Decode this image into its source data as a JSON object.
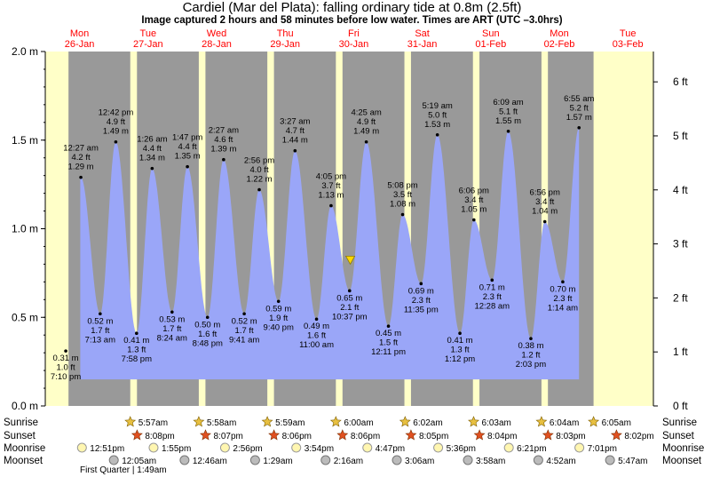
{
  "header": {
    "title": "Cardiel (Mar del Plata): falling  ordinary tide at 0.8m (2.5ft)",
    "subtitle": "Image captured 2 hours and 58 minutes before low water. Times are ART (UTC –3.0hrs)"
  },
  "days": [
    {
      "day": "Mon",
      "date": "26-Jan",
      "color": "#ff0000"
    },
    {
      "day": "Tue",
      "date": "27-Jan",
      "color": "#ff0000"
    },
    {
      "day": "Wed",
      "date": "28-Jan",
      "color": "#ff0000"
    },
    {
      "day": "Thu",
      "date": "29-Jan",
      "color": "#ff0000"
    },
    {
      "day": "Fri",
      "date": "30-Jan",
      "color": "#ff0000"
    },
    {
      "day": "Sat",
      "date": "31-Jan",
      "color": "#ff0000"
    },
    {
      "day": "Sun",
      "date": "01-Feb",
      "color": "#ff0000"
    },
    {
      "day": "Mon",
      "date": "02-Feb",
      "color": "#ff0000"
    },
    {
      "day": "Tue",
      "date": "03-Feb",
      "color": "#ff0000"
    }
  ],
  "chart_data": {
    "type": "area",
    "title": "Cardiel (Mar del Plata): falling  ordinary tide at 0.8m (2.5ft)",
    "x_units": "days since 26-Jan 00:00 (ART)",
    "ylim_m": [
      0,
      2.0
    ],
    "yticks_m": [
      "0.0 m",
      "0.5 m",
      "1.0 m",
      "1.5 m",
      "2.0 m"
    ],
    "yticks_ft": [
      "0 ft",
      "1 ft",
      "2 ft",
      "3 ft",
      "4 ft",
      "5 ft",
      "6 ft"
    ],
    "colors": {
      "day_fill": "#ffffc8",
      "night_fill": "#999999",
      "tide_fill": "#9aa6f8",
      "day_label": "#ff0000",
      "current_marker": "#ffd700"
    },
    "current": {
      "t": 4.45,
      "h": 0.8
    },
    "extremes": [
      {
        "t": 0.125,
        "h": 1.63,
        "type": "high",
        "label": []
      },
      {
        "t": 0.299,
        "h": 0.31,
        "type": "low",
        "label": [
          "0.31 m",
          "1.0 ft",
          "7:10 pm"
        ]
      },
      {
        "t": 0.519,
        "h": 1.29,
        "type": "high",
        "label": [
          "12:27 am",
          "4.2 ft",
          "1.29 m"
        ]
      },
      {
        "t": 0.801,
        "h": 0.52,
        "type": "low",
        "label": [
          "0.52 m",
          "1.7 ft",
          "7:13 am"
        ]
      },
      {
        "t": 1.029,
        "h": 1.49,
        "type": "high",
        "label": [
          "12:42 pm",
          "4.9 ft",
          "1.49 m"
        ]
      },
      {
        "t": 1.332,
        "h": 0.41,
        "type": "low",
        "label": [
          "0.41 m",
          "1.3 ft",
          "7:58 pm"
        ]
      },
      {
        "t": 1.559,
        "h": 1.34,
        "type": "high",
        "label": [
          "1:26 am",
          "4.4 ft",
          "1.34 m"
        ]
      },
      {
        "t": 1.85,
        "h": 0.53,
        "type": "low",
        "label": [
          "0.53 m",
          "1.7 ft",
          "8:24 am"
        ]
      },
      {
        "t": 2.074,
        "h": 1.35,
        "type": "high",
        "label": [
          "1:47 pm",
          "4.4 ft",
          "1.35 m"
        ]
      },
      {
        "t": 2.367,
        "h": 0.5,
        "type": "low",
        "label": [
          "0.50 m",
          "1.6 ft",
          "8:48 pm"
        ]
      },
      {
        "t": 2.602,
        "h": 1.39,
        "type": "high",
        "label": [
          "2:27 am",
          "4.6 ft",
          "1.39 m"
        ]
      },
      {
        "t": 2.903,
        "h": 0.52,
        "type": "low",
        "label": [
          "0.52 m",
          "1.7 ft",
          "9:41 am"
        ]
      },
      {
        "t": 3.122,
        "h": 1.22,
        "type": "high",
        "label": [
          "2:56 pm",
          "4.0 ft",
          "1.22 m"
        ]
      },
      {
        "t": 3.403,
        "h": 0.59,
        "type": "low",
        "label": [
          "0.59 m",
          "1.9 ft",
          "9:40 pm"
        ]
      },
      {
        "t": 3.644,
        "h": 1.44,
        "type": "high",
        "label": [
          "3:27 am",
          "4.7 ft",
          "1.44 m"
        ]
      },
      {
        "t": 3.958,
        "h": 0.49,
        "type": "low",
        "label": [
          "0.49 m",
          "1.6 ft",
          "11:00 am"
        ]
      },
      {
        "t": 4.17,
        "h": 1.13,
        "type": "high",
        "label": [
          "4:05 pm",
          "3.7 ft",
          "1.13 m"
        ]
      },
      {
        "t": 4.44,
        "h": 0.65,
        "type": "low",
        "label": [
          "0.65 m",
          "2.1 ft",
          "10:37 pm"
        ]
      },
      {
        "t": 4.684,
        "h": 1.49,
        "type": "high",
        "label": [
          "4:25 am",
          "4.9 ft",
          "1.49 m"
        ]
      },
      {
        "t": 5.007,
        "h": 0.45,
        "type": "low",
        "label": [
          "0.45 m",
          "1.5 ft",
          "12:11 pm"
        ]
      },
      {
        "t": 5.214,
        "h": 1.08,
        "type": "high",
        "label": [
          "5:08 pm",
          "3.5 ft",
          "1.08 m"
        ]
      },
      {
        "t": 5.483,
        "h": 0.69,
        "type": "low",
        "label": [
          "0.69 m",
          "2.3 ft",
          "11:35 pm"
        ]
      },
      {
        "t": 5.721,
        "h": 1.53,
        "type": "high",
        "label": [
          "5:19 am",
          "5.0 ft",
          "1.53 m"
        ]
      },
      {
        "t": 6.05,
        "h": 0.41,
        "type": "low",
        "label": [
          "0.41 m",
          "1.3 ft",
          "1:12 pm"
        ]
      },
      {
        "t": 6.254,
        "h": 1.05,
        "type": "high",
        "label": [
          "6:06 pm",
          "3.4 ft",
          "1.05 m"
        ]
      },
      {
        "t": 6.519,
        "h": 0.71,
        "type": "low",
        "label": [
          "0.71 m",
          "2.3 ft",
          "12:28 am"
        ]
      },
      {
        "t": 6.756,
        "h": 1.55,
        "type": "high",
        "label": [
          "6:09 am",
          "5.1 ft",
          "1.55 m"
        ]
      },
      {
        "t": 7.085,
        "h": 0.38,
        "type": "low",
        "label": [
          "0.38 m",
          "1.2 ft",
          "2:03 pm"
        ]
      },
      {
        "t": 7.289,
        "h": 1.04,
        "type": "high",
        "label": [
          "6:56 pm",
          "3.4 ft",
          "1.04 m"
        ]
      },
      {
        "t": 7.551,
        "h": 0.7,
        "type": "low",
        "label": [
          "0.70 m",
          "2.3 ft",
          "1:14 am"
        ]
      },
      {
        "t": 7.788,
        "h": 1.57,
        "type": "high",
        "label": [
          "6:55 am",
          "5.2 ft",
          "1.57 m"
        ]
      }
    ],
    "nights": [
      [
        0.339,
        1.24
      ],
      [
        1.338,
        2.24
      ],
      [
        2.337,
        3.24
      ],
      [
        3.337,
        4.24
      ],
      [
        4.337,
        5.24
      ],
      [
        5.336,
        6.24
      ],
      [
        6.335,
        7.24
      ],
      [
        7.334,
        8.0
      ]
    ]
  },
  "events": {
    "row_labels": {
      "sunrise": "Sunrise",
      "sunset": "Sunset",
      "moonrise": "Moonrise",
      "moonset": "Moonset"
    },
    "sunrise": [
      {
        "t": 1.24,
        "label": "5:57am"
      },
      {
        "t": 2.24,
        "label": "5:58am"
      },
      {
        "t": 3.24,
        "label": "5:59am"
      },
      {
        "t": 4.24,
        "label": "6:00am"
      },
      {
        "t": 5.25,
        "label": "6:02am"
      },
      {
        "t": 6.25,
        "label": "6:03am"
      },
      {
        "t": 7.24,
        "label": "6:04am"
      },
      {
        "t": 8.0,
        "label": "6:05am"
      }
    ],
    "sunset": [
      {
        "t": 1.339,
        "label": "8:08pm"
      },
      {
        "t": 2.338,
        "label": "8:07pm"
      },
      {
        "t": 3.337,
        "label": "8:06pm"
      },
      {
        "t": 4.337,
        "label": "8:06pm"
      },
      {
        "t": 5.336,
        "label": "8:05pm"
      },
      {
        "t": 6.335,
        "label": "8:04pm"
      },
      {
        "t": 7.335,
        "label": "8:03pm"
      },
      {
        "t": 8.334,
        "label": "8:02pm"
      }
    ],
    "moonrise": [
      {
        "t": 0.535,
        "label": "12:51pm"
      },
      {
        "t": 1.58,
        "label": "1:55pm"
      },
      {
        "t": 2.622,
        "label": "2:56pm"
      },
      {
        "t": 3.662,
        "label": "3:54pm"
      },
      {
        "t": 4.699,
        "label": "4:47pm"
      },
      {
        "t": 5.733,
        "label": "5:36pm"
      },
      {
        "t": 6.764,
        "label": "6:21pm"
      },
      {
        "t": 7.793,
        "label": "7:01pm"
      }
    ],
    "moonset": [
      {
        "t": 1.0,
        "label": "12:05am"
      },
      {
        "t": 2.032,
        "label": "12:46am"
      },
      {
        "t": 3.062,
        "label": "1:29am"
      },
      {
        "t": 4.09,
        "label": "2:16am"
      },
      {
        "t": 5.13,
        "label": "3:06am"
      },
      {
        "t": 6.166,
        "label": "3:58am"
      },
      {
        "t": 7.194,
        "label": "4:52am"
      },
      {
        "t": 8.24,
        "label": "5:47am"
      }
    ],
    "moon_phase": "First Quarter | 1:49am"
  }
}
